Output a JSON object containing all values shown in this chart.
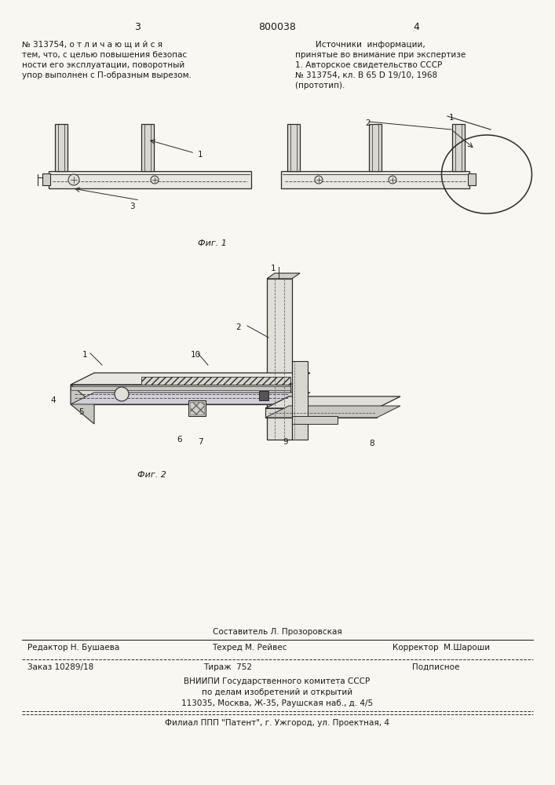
{
  "bg_color": "#f8f7f2",
  "title_number": "800038",
  "page_left": "3",
  "page_right": "4",
  "left_text_line1": "№ 313754, о т л и ч а ю щ и й с я",
  "left_text_line2": "тем, что, с целью повышения безопас",
  "left_text_line3": "ности его эксплуатации, поворотный",
  "left_text_line4": "упор выполнен с П-образным вырезом.",
  "right_title": "            Источники  информации,",
  "right_line2": "    принятые во внимание при экспертизе",
  "right_line3": "    1. Авторское свидетельство СССР",
  "right_line4": "    № 313754, кл. В 65 D 19/10, 1968",
  "right_line5": "    (прототип).",
  "fig1_caption": "Фиг. 1",
  "fig2_caption": "Фиг. 2",
  "footer_comp": "Составитель Л. Прозоровская",
  "footer_editor": "Редактор Н. Бушаева",
  "footer_tech": "Техред М. Рейвес",
  "footer_corr": "Корректор  М.Шароши",
  "footer_order": "Заказ 10289/18",
  "footer_tirage": "Тираж  752",
  "footer_sub": "Подписное",
  "footer_org1": "ВНИИПИ Государственного комитета СССР",
  "footer_org2": "по делам изобретений и открытий",
  "footer_addr": "113035, Москва, Ж-35, Раушская наб., д. 4/5",
  "footer_branch": "Филиал ППП \"Патент\", г. Ужгород, ул. Проектная, 4"
}
